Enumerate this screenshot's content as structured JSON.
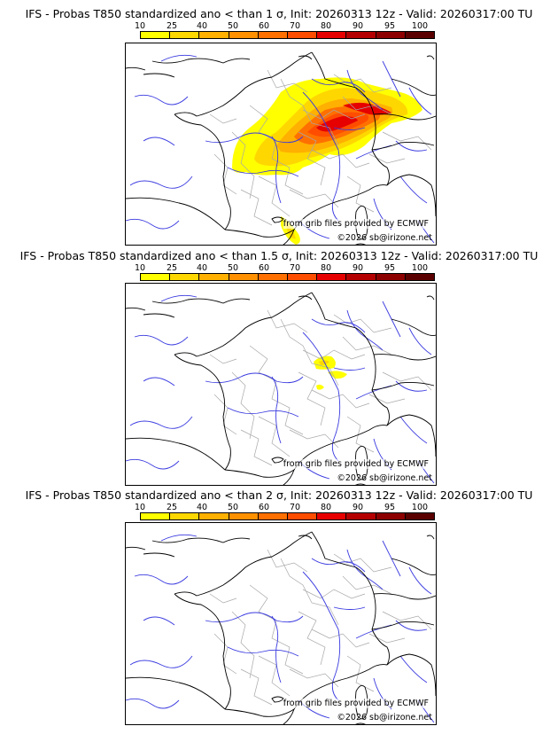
{
  "colorbar": {
    "labels": [
      "10",
      "25",
      "40",
      "50",
      "60",
      "70",
      "80",
      "90",
      "95",
      "100"
    ],
    "colors": [
      "#ffff00",
      "#ffd700",
      "#ffb000",
      "#ff9000",
      "#ff7000",
      "#ff4d00",
      "#e60000",
      "#b40000",
      "#8c0000",
      "#5a0000"
    ]
  },
  "panels": [
    {
      "title": "IFS - Probas T850  standardized ano < than 1 σ, Init: 20260313 12z - Valid: 20260317:00 TU",
      "credit": "from grib files provided by ECMWF",
      "copyright": "©2026 sb@irizone.net"
    },
    {
      "title": "IFS - Probas T850  standardized ano < than 1.5 σ, Init: 20260313 12z - Valid: 20260317:00 TU",
      "credit": "from grib files provided by ECMWF",
      "copyright": "©2026 sb@irizone.net"
    },
    {
      "title": "IFS - Probas T850  standardized ano < than 2 σ, Init: 20260313 12z - Valid: 20260317:00 TU",
      "credit": "from grib files provided by ECMWF",
      "copyright": "©2026 sb@irizone.net"
    }
  ]
}
